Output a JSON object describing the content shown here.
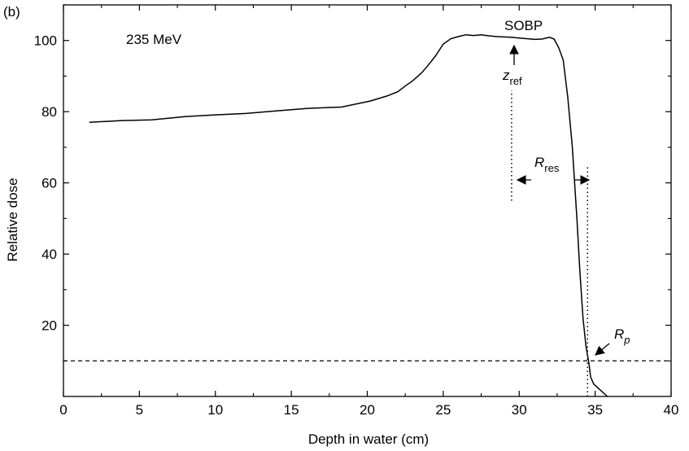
{
  "panel_label": "(b)",
  "energy_label": "235 MeV",
  "chart_data": {
    "type": "line",
    "xlabel": "Depth in water (cm)",
    "ylabel": "Relative dose",
    "xlim": [
      0,
      40
    ],
    "ylim": [
      0,
      110
    ],
    "xticks": [
      0,
      5,
      10,
      15,
      20,
      25,
      30,
      35,
      40
    ],
    "yticks": [
      20,
      40,
      60,
      80,
      100
    ],
    "grid": false,
    "series": [
      {
        "x": [
          1.7,
          3.8,
          5.8,
          8.0,
          10.0,
          12.0,
          14.0,
          16.0,
          18.3,
          20.2,
          21.3,
          22.0,
          22.5,
          23.0,
          23.6,
          24.0,
          24.5,
          25.0,
          25.5,
          26.0,
          26.5,
          27.0,
          27.5,
          28.0,
          28.5,
          29.0,
          29.5,
          30.0,
          30.5,
          31.0,
          31.5,
          32.0,
          32.3,
          32.6,
          32.9,
          33.2,
          33.5,
          33.8,
          34.0,
          34.2,
          34.4,
          34.6,
          34.7,
          34.9,
          35.8
        ],
        "y": [
          77,
          77.5,
          77.7,
          78.6,
          79.1,
          79.5,
          80.2,
          80.9,
          81.3,
          83.0,
          84.4,
          85.6,
          87.2,
          88.7,
          91.0,
          93.0,
          95.7,
          99.0,
          100.5,
          101.1,
          101.6,
          101.4,
          101.6,
          101.3,
          101.1,
          101.0,
          100.9,
          100.7,
          100.5,
          100.3,
          100.4,
          100.9,
          100.4,
          98.0,
          94.5,
          84.0,
          70.0,
          50.0,
          35.0,
          22.0,
          14.0,
          9.0,
          5.5,
          3.5,
          0.0
        ]
      }
    ],
    "reference_line": {
      "y": 10,
      "style": "dashed"
    },
    "markers": [
      {
        "x": 29.5,
        "y_from": 55,
        "y_to": 86,
        "style": "dotted"
      },
      {
        "x": 34.5,
        "y_from": 0,
        "y_to": 65,
        "style": "dotted"
      }
    ],
    "annotations": {
      "sobp": "SOBP",
      "zref_main": "z",
      "zref_sub": "ref",
      "rres_main": "R",
      "rres_sub": "res",
      "rp_main": "R",
      "rp_sub": "p"
    }
  }
}
